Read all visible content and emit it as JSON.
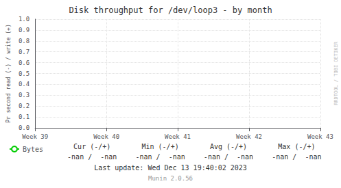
{
  "chart_data": {
    "type": "line",
    "title": "Disk throughput for /dev/loop3 - by month",
    "ylabel": "Pr second read (-) / write (+)",
    "categories": [
      "Week 39",
      "Week 40",
      "Week 41",
      "Week 42",
      "Week 43"
    ],
    "series": [
      {
        "name": "Bytes",
        "color": "#00cc00",
        "values": [
          null,
          null,
          null,
          null,
          null
        ]
      }
    ],
    "ylim": [
      0.0,
      1.0
    ],
    "yticks": [
      {
        "value": 0.0,
        "label": "0.0"
      },
      0.1,
      0.2,
      0.3,
      0.4,
      0.5,
      0.6,
      0.7,
      0.8,
      0.9,
      {
        "value": 1.0,
        "label": "1.0"
      }
    ],
    "grid": true,
    "legend": "bottom",
    "annotations": [
      [
        "Cur (-/+)",
        "Min (-/+)",
        "Avg (-/+)",
        "Max (-/+)"
      ],
      [
        "-nan /  -nan",
        "-nan /  -nan",
        "-nan /  -nan",
        "-nan /  -nan"
      ],
      [
        "Last update: Wed Dec 13 19:40:02 2023"
      ],
      [
        "Munin 2.0.56"
      ],
      [
        "RRDTOOL / TOBI OETIKER"
      ]
    ]
  }
}
